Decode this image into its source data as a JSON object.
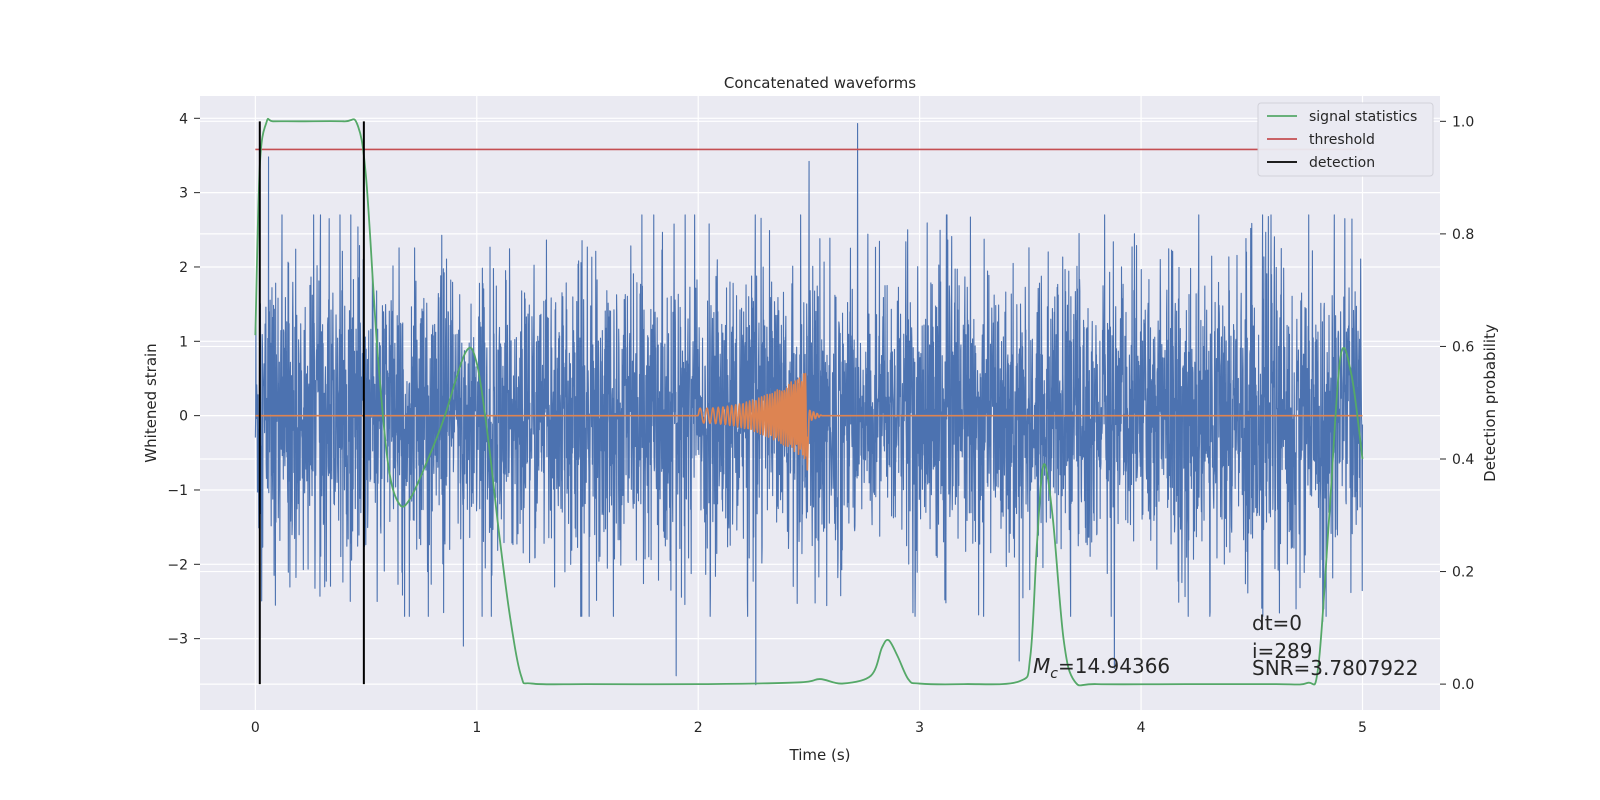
{
  "chart_data": {
    "type": "line",
    "title": "Concatenated waveforms",
    "xlabel": "Time (s)",
    "ylabel_left": "Whitened strain",
    "ylabel_right": "Detection probability",
    "xlim": [
      -0.25,
      5.35
    ],
    "ylim_left": [
      -3.96,
      4.3
    ],
    "ylim_right": [
      -0.046,
      1.045
    ],
    "x_ticks": [
      0,
      1,
      2,
      3,
      4,
      5
    ],
    "y_ticks_left": [
      -3,
      -2,
      -1,
      0,
      1,
      2,
      3,
      4
    ],
    "y_ticks_right": [
      0.0,
      0.2,
      0.4,
      0.6,
      0.8,
      1.0
    ],
    "x_tick_labels": [
      "0",
      "1",
      "2",
      "3",
      "4",
      "5"
    ],
    "y_tick_labels_left": [
      "−3",
      "−2",
      "−1",
      "0",
      "1",
      "2",
      "3",
      "4"
    ],
    "y_tick_labels_right": [
      "0.0",
      "0.2",
      "0.4",
      "0.6",
      "0.8",
      "1.0"
    ],
    "grid": true,
    "legend_position": "top-right",
    "legend": [
      {
        "label": "signal statistics",
        "color": "#55a868"
      },
      {
        "label": "threshold",
        "color": "#c44e52"
      },
      {
        "label": "detection",
        "color": "#000000"
      }
    ],
    "series": [
      {
        "role": "whitened_strain_noise",
        "axis": "left",
        "color": "#4c72b0",
        "x_range": [
          0,
          5
        ],
        "typical_envelope": [
          -1.0,
          1.0
        ],
        "spike_points": [
          [
            0.06,
            3.48
          ],
          [
            0.09,
            -2.55
          ],
          [
            0.55,
            -2.5
          ],
          [
            0.85,
            -2.65
          ],
          [
            0.94,
            -3.1
          ],
          [
            1.9,
            -3.5
          ],
          [
            2.26,
            -3.62
          ],
          [
            2.5,
            3.42
          ],
          [
            2.72,
            3.93
          ],
          [
            3.45,
            -3.3
          ],
          [
            3.88,
            -3.4
          ],
          [
            4.7,
            -2.6
          ],
          [
            4.82,
            -2.77
          ],
          [
            4.92,
            2.65
          ]
        ]
      },
      {
        "role": "injected_waveform",
        "axis": "left",
        "color": "#dd8452",
        "chirp_start": 2.0,
        "chirp_end": 2.5,
        "start_amplitude": 0.1,
        "peak_amplitude": 0.62,
        "trough_amplitude": -0.75,
        "flat_value": 0.0
      },
      {
        "name": "signal statistics",
        "axis": "right",
        "color": "#55a868",
        "x": [
          0.0,
          0.02,
          0.05,
          0.08,
          0.2,
          0.4,
          0.46,
          0.5,
          0.55,
          0.6,
          0.65,
          0.7,
          0.78,
          0.85,
          0.95,
          1.0,
          1.05,
          1.1,
          1.15,
          1.2,
          1.25,
          1.5,
          2.0,
          2.45,
          2.55,
          2.65,
          2.78,
          2.83,
          2.86,
          2.9,
          2.95,
          3.0,
          3.2,
          3.45,
          3.5,
          3.53,
          3.56,
          3.6,
          3.65,
          3.7,
          3.8,
          4.2,
          4.6,
          4.75,
          4.8,
          4.85,
          4.9,
          4.95,
          5.0
        ],
        "y": [
          0.62,
          0.92,
          0.998,
          1.0,
          1.0,
          1.0,
          0.995,
          0.9,
          0.6,
          0.39,
          0.32,
          0.33,
          0.4,
          0.47,
          0.59,
          0.57,
          0.44,
          0.27,
          0.12,
          0.015,
          0.001,
          0.0,
          0.0,
          0.003,
          0.009,
          0.001,
          0.015,
          0.065,
          0.078,
          0.05,
          0.008,
          0.001,
          0.0,
          0.005,
          0.05,
          0.25,
          0.39,
          0.3,
          0.08,
          0.005,
          0.0,
          0.0,
          0.0,
          0.002,
          0.03,
          0.3,
          0.58,
          0.55,
          0.4
        ]
      },
      {
        "name": "threshold",
        "axis": "right",
        "color": "#c44e52",
        "x": [
          0.0,
          5.0
        ],
        "y": [
          0.95,
          0.95
        ]
      },
      {
        "name": "detection",
        "axis": "right",
        "color": "#000000",
        "x_positions": [
          0.02,
          0.49
        ],
        "y_range": [
          0.0,
          1.0
        ]
      }
    ],
    "annotations": {
      "dt": "dt=0",
      "index": "i=289",
      "snr": "SNR=3.7807922",
      "chirp_mass_symbol": "M",
      "chirp_mass_sub": "c",
      "chirp_mass_value": "=14.94366"
    }
  }
}
